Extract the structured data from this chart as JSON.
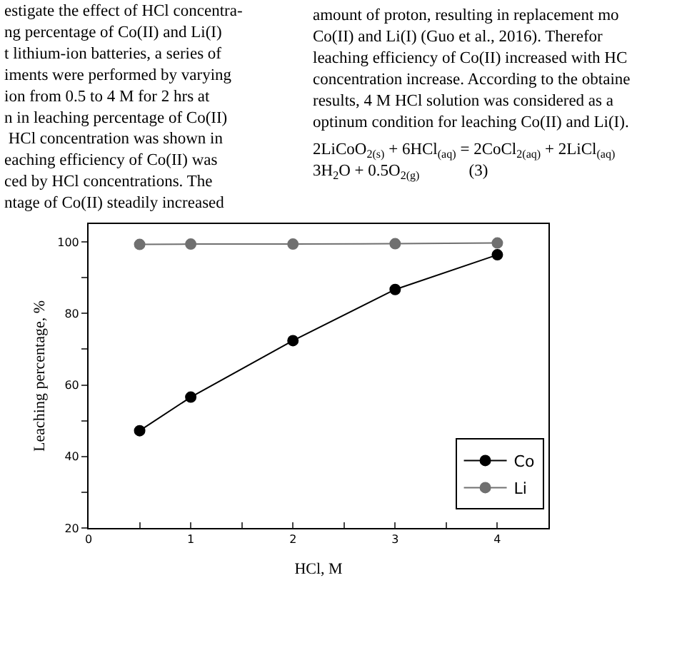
{
  "chart_data": {
    "type": "line",
    "xlabel": "HCl, M",
    "ylabel": "Leaching percentage, %",
    "x": [
      0.5,
      1,
      2,
      3,
      4
    ],
    "series": [
      {
        "name": "Co",
        "color": "#000000",
        "marker": "circle",
        "values": [
          47.2,
          56.6,
          72.4,
          86.7,
          96.4
        ]
      },
      {
        "name": "Li",
        "color": "#707070",
        "marker": "circle",
        "values": [
          99.3,
          99.4,
          99.4,
          99.5,
          99.7
        ]
      }
    ],
    "xlim": [
      0,
      4.5
    ],
    "xticks": [
      0,
      {
        "value": 0.5,
        "label": null
      },
      1,
      {
        "value": 1.5,
        "label": null
      },
      2,
      {
        "value": 2.5,
        "label": null
      },
      3,
      {
        "value": 3.5,
        "label": null
      },
      4
    ],
    "ylim": [
      20,
      105
    ],
    "yticks": [
      20,
      {
        "value": 30,
        "label": null
      },
      40,
      {
        "value": 50,
        "label": null
      },
      60,
      {
        "value": 70,
        "label": null
      },
      80,
      {
        "value": 90,
        "label": null
      },
      100
    ],
    "legend": "bottom right",
    "line_style": "solid",
    "annotations": [
      "estigate the effect of HCl concentra-\nng percentage of Co(II) and Li(I)\nt lithium-ion batteries, a series of\niments were performed by varying\nion from 0.5 to 4 M for 2 hrs at\nn in leaching percentage of Co(II)\n HCl concentration was shown in\neaching efficiency of Co(II) was\nced by HCl concentrations. The\nntage of Co(II) steadily increased",
      "amount of proton, resulting in replacement mo\nCo(II) and Li(I) (Guo et al., 2016). Therefor\nleaching efficiency of Co(II) increased with HC\nconcentration increase. According to the obtaine\nresults, 4 M HCl solution was considered as a\noptinum condition for leaching Co(II) and Li(I).",
      "2LiCoO$_{2(s)}$ + 6HCl$_{(aq)}$ = 2CoCl$_{2(aq)}$ + 2LiCl$_{(aq)}$",
      "3H$_{2}$O + 0.5O$_{2(g)}$            (3)"
    ]
  }
}
